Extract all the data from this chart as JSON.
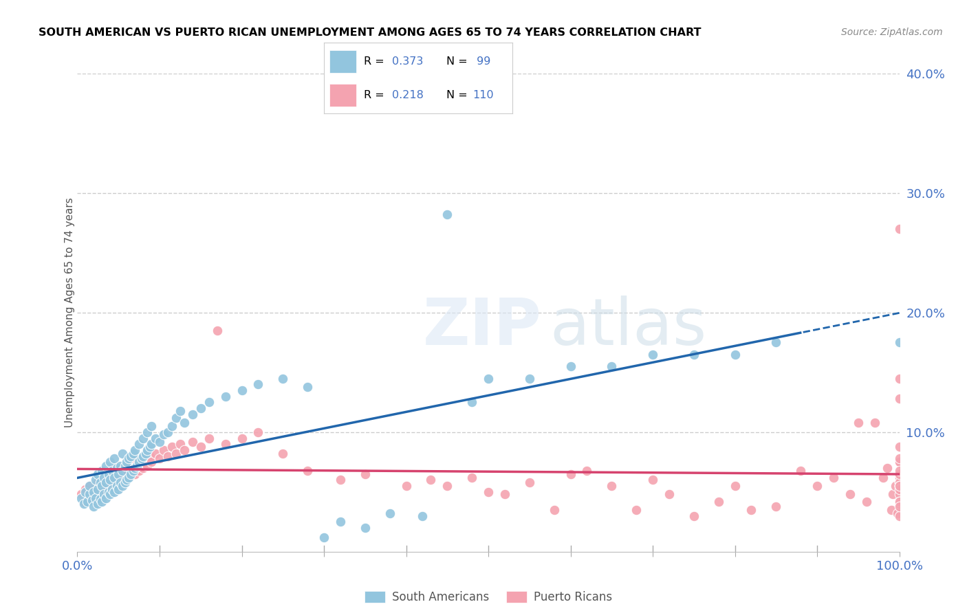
{
  "title": "SOUTH AMERICAN VS PUERTO RICAN UNEMPLOYMENT AMONG AGES 65 TO 74 YEARS CORRELATION CHART",
  "source": "Source: ZipAtlas.com",
  "ylabel": "Unemployment Among Ages 65 to 74 years",
  "xlim": [
    0,
    1.0
  ],
  "ylim": [
    0,
    0.4
  ],
  "sa_color": "#92c5de",
  "pr_color": "#f4a3b0",
  "sa_trend_color": "#2166ac",
  "pr_trend_color": "#d6436e",
  "sa_R": 0.373,
  "sa_N": 99,
  "pr_R": 0.218,
  "pr_N": 110,
  "sa_x": [
    0.005,
    0.008,
    0.01,
    0.012,
    0.015,
    0.015,
    0.018,
    0.02,
    0.02,
    0.022,
    0.022,
    0.025,
    0.025,
    0.025,
    0.028,
    0.028,
    0.03,
    0.03,
    0.03,
    0.032,
    0.032,
    0.035,
    0.035,
    0.035,
    0.038,
    0.038,
    0.04,
    0.04,
    0.04,
    0.042,
    0.042,
    0.045,
    0.045,
    0.045,
    0.048,
    0.048,
    0.05,
    0.05,
    0.052,
    0.052,
    0.055,
    0.055,
    0.055,
    0.058,
    0.058,
    0.06,
    0.06,
    0.062,
    0.062,
    0.065,
    0.065,
    0.068,
    0.068,
    0.07,
    0.07,
    0.072,
    0.075,
    0.075,
    0.078,
    0.08,
    0.08,
    0.083,
    0.085,
    0.085,
    0.088,
    0.09,
    0.09,
    0.095,
    0.1,
    0.105,
    0.11,
    0.115,
    0.12,
    0.125,
    0.13,
    0.14,
    0.15,
    0.16,
    0.18,
    0.2,
    0.22,
    0.25,
    0.28,
    0.3,
    0.32,
    0.35,
    0.38,
    0.42,
    0.45,
    0.48,
    0.5,
    0.55,
    0.6,
    0.65,
    0.7,
    0.75,
    0.8,
    0.85,
    1.0
  ],
  "sa_y": [
    0.045,
    0.04,
    0.05,
    0.042,
    0.048,
    0.055,
    0.043,
    0.038,
    0.05,
    0.045,
    0.06,
    0.04,
    0.052,
    0.065,
    0.044,
    0.058,
    0.042,
    0.055,
    0.068,
    0.048,
    0.062,
    0.045,
    0.058,
    0.072,
    0.05,
    0.065,
    0.048,
    0.06,
    0.075,
    0.052,
    0.068,
    0.05,
    0.062,
    0.078,
    0.055,
    0.07,
    0.052,
    0.065,
    0.058,
    0.072,
    0.055,
    0.068,
    0.082,
    0.058,
    0.072,
    0.06,
    0.075,
    0.062,
    0.078,
    0.065,
    0.08,
    0.068,
    0.082,
    0.07,
    0.085,
    0.072,
    0.075,
    0.09,
    0.078,
    0.08,
    0.095,
    0.082,
    0.085,
    0.1,
    0.088,
    0.09,
    0.105,
    0.095,
    0.092,
    0.098,
    0.1,
    0.105,
    0.112,
    0.118,
    0.108,
    0.115,
    0.12,
    0.125,
    0.13,
    0.135,
    0.14,
    0.145,
    0.138,
    0.012,
    0.025,
    0.02,
    0.032,
    0.03,
    0.282,
    0.125,
    0.145,
    0.145,
    0.155,
    0.155,
    0.165,
    0.165,
    0.165,
    0.175,
    0.175
  ],
  "pr_x": [
    0.005,
    0.008,
    0.01,
    0.012,
    0.015,
    0.018,
    0.02,
    0.022,
    0.025,
    0.028,
    0.03,
    0.032,
    0.035,
    0.038,
    0.04,
    0.042,
    0.045,
    0.048,
    0.05,
    0.052,
    0.055,
    0.058,
    0.06,
    0.062,
    0.065,
    0.068,
    0.07,
    0.072,
    0.075,
    0.078,
    0.08,
    0.083,
    0.085,
    0.088,
    0.09,
    0.095,
    0.1,
    0.105,
    0.11,
    0.115,
    0.12,
    0.125,
    0.13,
    0.14,
    0.15,
    0.16,
    0.17,
    0.18,
    0.2,
    0.22,
    0.25,
    0.28,
    0.32,
    0.35,
    0.4,
    0.43,
    0.45,
    0.48,
    0.5,
    0.52,
    0.55,
    0.58,
    0.6,
    0.62,
    0.65,
    0.68,
    0.7,
    0.72,
    0.75,
    0.78,
    0.8,
    0.82,
    0.85,
    0.88,
    0.9,
    0.92,
    0.94,
    0.95,
    0.96,
    0.97,
    0.98,
    0.985,
    0.99,
    0.992,
    0.995,
    0.998,
    1.0,
    1.0,
    1.0,
    1.0,
    1.0,
    1.0,
    1.0,
    1.0,
    1.0,
    1.0,
    1.0,
    1.0,
    1.0,
    1.0,
    1.0,
    1.0,
    1.0,
    1.0,
    1.0,
    1.0,
    1.0,
    1.0,
    1.0,
    1.0
  ],
  "pr_y": [
    0.048,
    0.042,
    0.052,
    0.045,
    0.055,
    0.048,
    0.05,
    0.045,
    0.058,
    0.052,
    0.048,
    0.06,
    0.055,
    0.062,
    0.058,
    0.065,
    0.06,
    0.068,
    0.062,
    0.07,
    0.065,
    0.072,
    0.068,
    0.075,
    0.07,
    0.078,
    0.065,
    0.072,
    0.068,
    0.075,
    0.07,
    0.078,
    0.072,
    0.08,
    0.075,
    0.082,
    0.078,
    0.085,
    0.08,
    0.088,
    0.082,
    0.09,
    0.085,
    0.092,
    0.088,
    0.095,
    0.185,
    0.09,
    0.095,
    0.1,
    0.082,
    0.068,
    0.06,
    0.065,
    0.055,
    0.06,
    0.055,
    0.062,
    0.05,
    0.048,
    0.058,
    0.035,
    0.065,
    0.068,
    0.055,
    0.035,
    0.06,
    0.048,
    0.03,
    0.042,
    0.055,
    0.035,
    0.038,
    0.068,
    0.055,
    0.062,
    0.048,
    0.108,
    0.042,
    0.108,
    0.062,
    0.07,
    0.035,
    0.048,
    0.055,
    0.032,
    0.055,
    0.048,
    0.058,
    0.065,
    0.065,
    0.075,
    0.062,
    0.042,
    0.058,
    0.03,
    0.04,
    0.075,
    0.055,
    0.042,
    0.052,
    0.065,
    0.038,
    0.145,
    0.055,
    0.078,
    0.068,
    0.128,
    0.088,
    0.27
  ]
}
